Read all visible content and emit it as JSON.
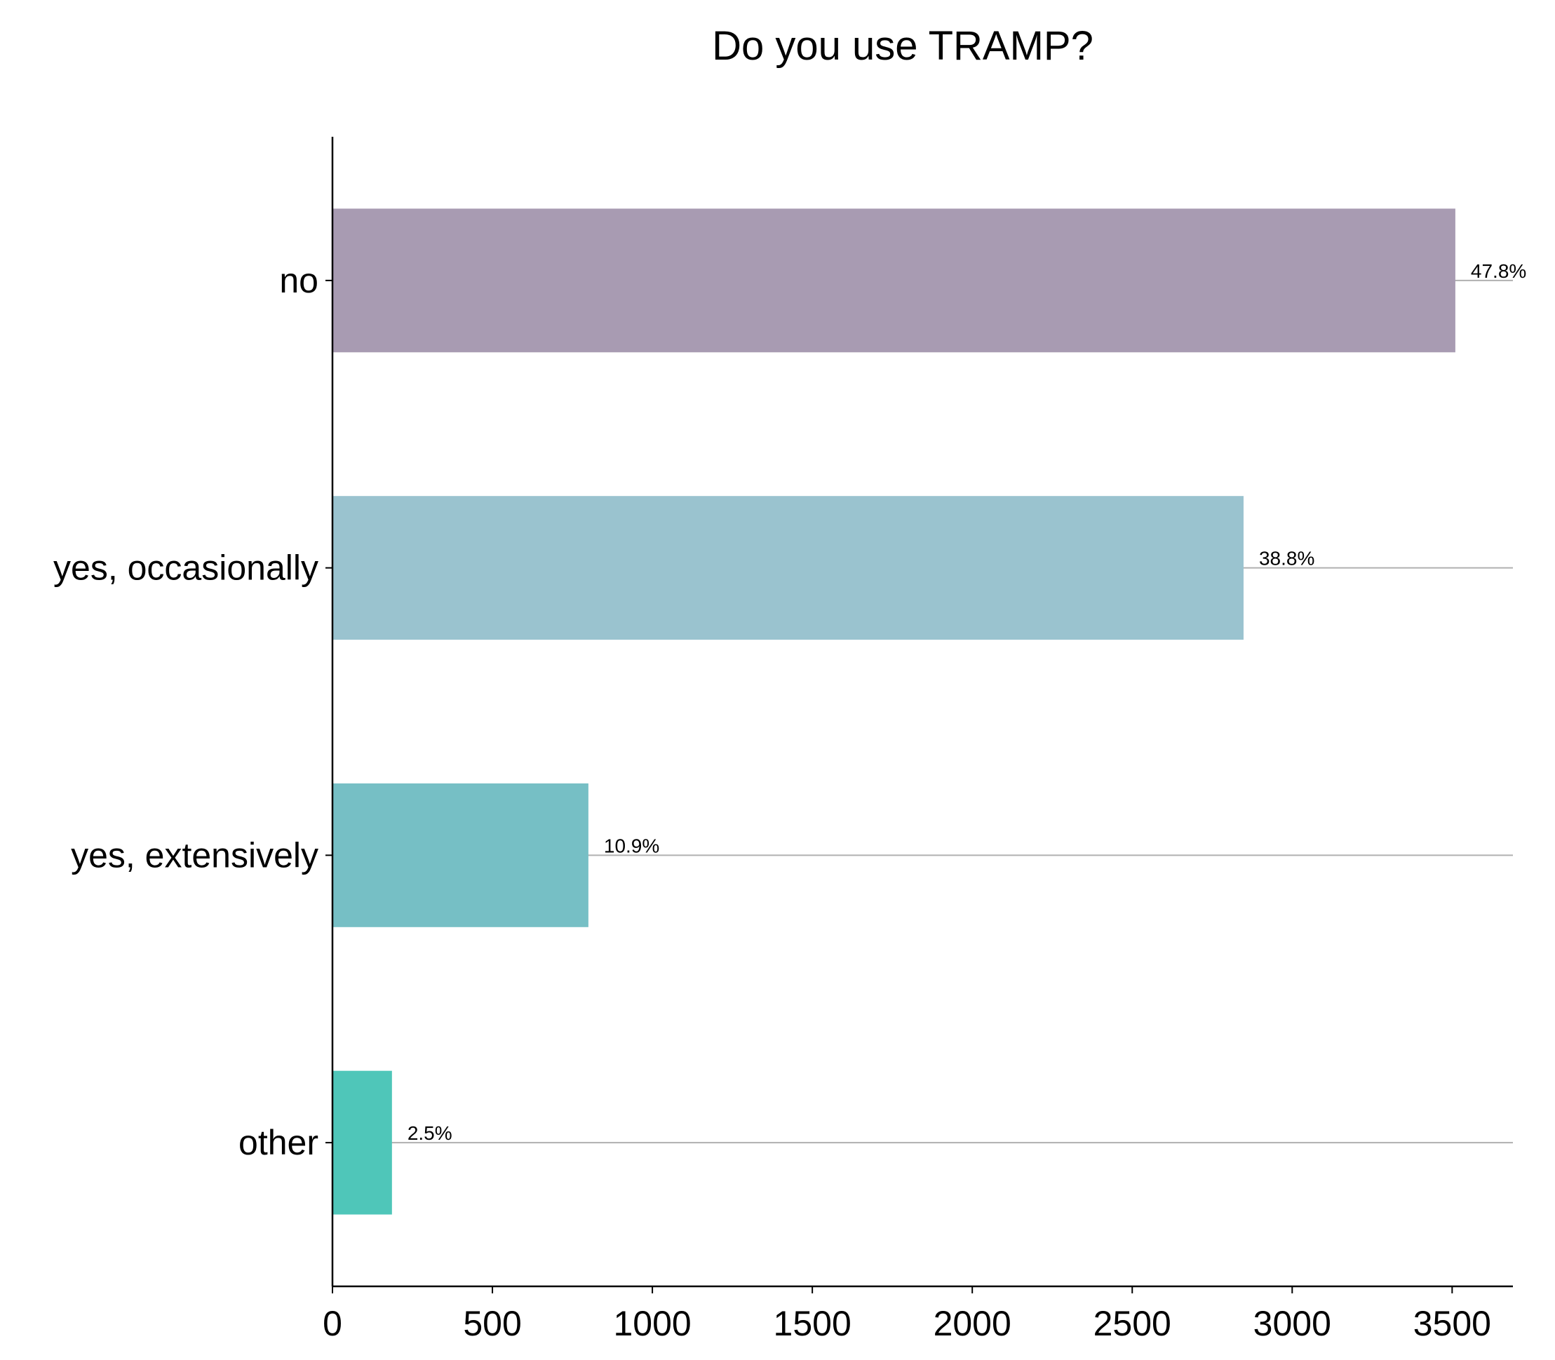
{
  "chart_data": {
    "type": "bar",
    "orientation": "horizontal",
    "title": "Do you use TRAMP?",
    "xlabel": "",
    "ylabel": "",
    "categories": [
      "no",
      "yes, occasionally",
      "yes, extensively",
      "other"
    ],
    "values": [
      3510,
      2848,
      800,
      186
    ],
    "percent_labels": [
      "47.8%",
      "38.8%",
      "10.9%",
      "2.5%"
    ],
    "colors": [
      "#a89bb2",
      "#9ac3cf",
      "#76bfc5",
      "#4fc6b9"
    ],
    "xlim": [
      0,
      3690
    ],
    "xticks": [
      0,
      500,
      1000,
      1500,
      2000,
      2500,
      3000,
      3500
    ],
    "xtick_labels": [
      "0",
      "500",
      "1000",
      "1500",
      "2000",
      "2500",
      "3000",
      "3500"
    ],
    "grid": "horizontal lines at each category",
    "grid_color": "#b0b0b0",
    "legend": "none"
  }
}
